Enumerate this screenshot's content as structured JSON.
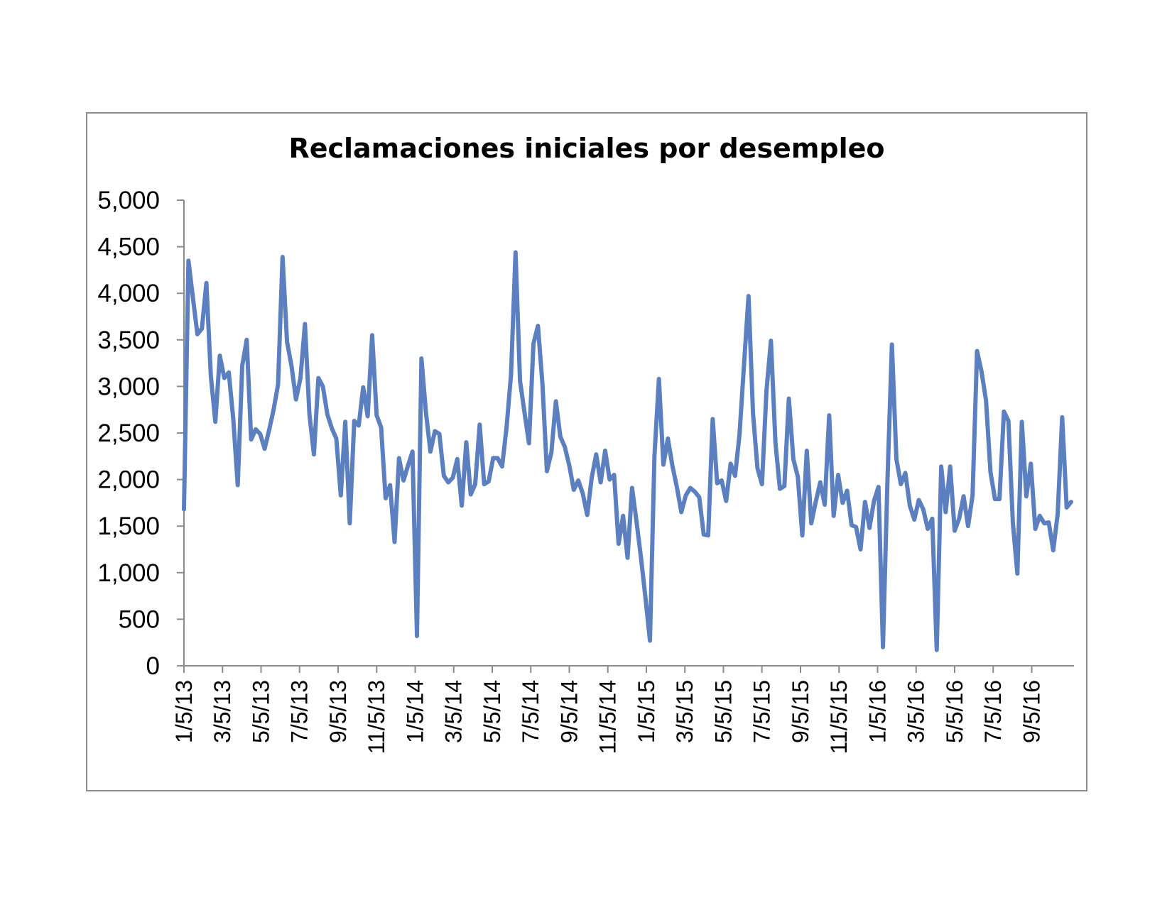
{
  "chart_data": {
    "type": "line",
    "title": "Reclamaciones iniciales por desempleo",
    "xlabel": "",
    "ylabel": "",
    "ylim": [
      0,
      5000
    ],
    "yticks": [
      {
        "value": 0,
        "label": "0"
      },
      {
        "value": 500,
        "label": "500"
      },
      {
        "value": 1000,
        "label": "1,000"
      },
      {
        "value": 1500,
        "label": "1,500"
      },
      {
        "value": 2000,
        "label": "2,000"
      },
      {
        "value": 2500,
        "label": "2,500"
      },
      {
        "value": 3000,
        "label": "3,000"
      },
      {
        "value": 3500,
        "label": "3,500"
      },
      {
        "value": 4000,
        "label": "4,000"
      },
      {
        "value": 4500,
        "label": "4,500"
      },
      {
        "value": 5000,
        "label": "5,000"
      }
    ],
    "xticks": [
      "1/5/13",
      "3/5/13",
      "5/5/13",
      "7/5/13",
      "9/5/13",
      "11/5/13",
      "1/5/14",
      "3/5/14",
      "5/5/14",
      "7/5/14",
      "9/5/14",
      "11/5/14",
      "1/5/15",
      "3/5/15",
      "5/5/15",
      "7/5/15",
      "9/5/15",
      "11/5/15",
      "1/5/16",
      "3/5/16",
      "5/5/16",
      "7/5/16",
      "9/5/16"
    ],
    "grid": false,
    "legend": "none",
    "line_color": "#5b7fbf",
    "series": [
      {
        "values": [
          1680,
          4350,
          3950,
          3560,
          3620,
          4110,
          3110,
          2620,
          3330,
          3090,
          3150,
          2650,
          1940,
          3220,
          3500,
          2430,
          2540,
          2490,
          2330,
          2530,
          2750,
          3020,
          4390,
          3480,
          3220,
          2860,
          3090,
          3670,
          2700,
          2270,
          3090,
          3000,
          2700,
          2550,
          2440,
          1830,
          2620,
          1530,
          2630,
          2580,
          2990,
          2680,
          3550,
          2690,
          2560,
          1800,
          1940,
          1330,
          2230,
          1990,
          2150,
          2300,
          320,
          3300,
          2720,
          2300,
          2520,
          2490,
          2040,
          1970,
          2020,
          2220,
          1720,
          2400,
          1840,
          1950,
          2590,
          1950,
          1980,
          2230,
          2230,
          2140,
          2560,
          3130,
          4440,
          3060,
          2720,
          2390,
          3460,
          3650,
          3030,
          2090,
          2290,
          2840,
          2460,
          2350,
          2150,
          1890,
          1990,
          1850,
          1620,
          2020,
          2270,
          1970,
          2310,
          2000,
          2050,
          1310,
          1610,
          1160,
          1910,
          1550,
          1160,
          730,
          270,
          2250,
          3080,
          2160,
          2440,
          2150,
          1920,
          1650,
          1830,
          1910,
          1870,
          1810,
          1410,
          1400,
          2650,
          1960,
          1990,
          1770,
          2170,
          2040,
          2490,
          3240,
          3970,
          2710,
          2120,
          1950,
          2950,
          3490,
          2400,
          1900,
          1930,
          2870,
          2220,
          2030,
          1400,
          2310,
          1530,
          1760,
          1970,
          1730,
          2690,
          1610,
          2050,
          1750,
          1880,
          1510,
          1490,
          1250,
          1760,
          1480,
          1770,
          1920,
          200,
          1980,
          3450,
          2220,
          1950,
          2070,
          1720,
          1570,
          1780,
          1680,
          1470,
          1580,
          170,
          2140,
          1650,
          2140,
          1450,
          1580,
          1820,
          1500,
          1830,
          3380,
          3160,
          2850,
          2080,
          1790,
          1790,
          2730,
          2630,
          1530,
          990,
          2620,
          1820,
          2170,
          1470,
          1610,
          1530,
          1540,
          1240,
          1630,
          2670,
          1700,
          1760
        ]
      }
    ]
  }
}
